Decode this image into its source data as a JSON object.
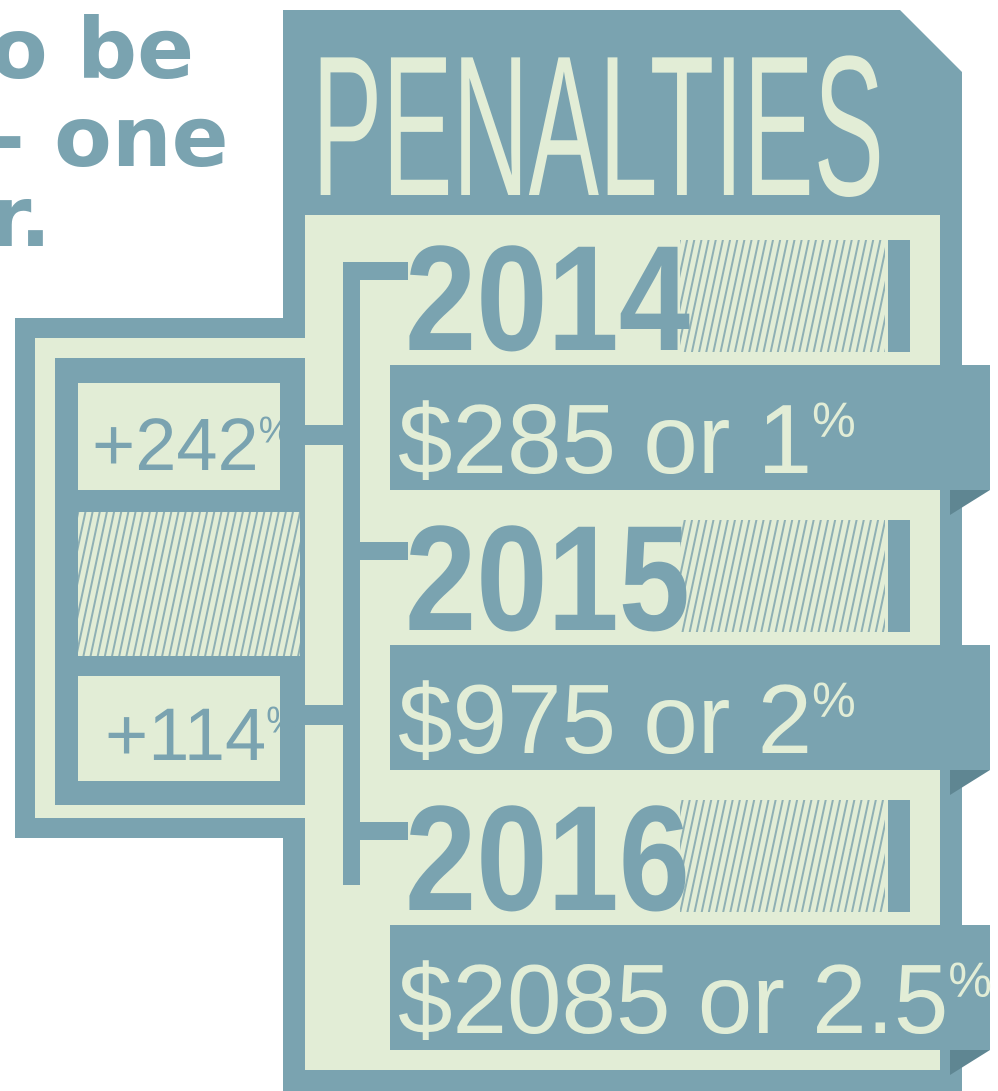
{
  "intro": {
    "lines": [
      "o be",
      "- one",
      "r."
    ]
  },
  "title": "PENALTIES",
  "years": [
    {
      "year": "2014",
      "penalty": "$285 or 1%"
    },
    {
      "year": "2015",
      "penalty": "$975 or 2%"
    },
    {
      "year": "2016",
      "penalty": "$2085 or 2.5%"
    }
  ],
  "increases": [
    "+242%",
    "+114%"
  ]
}
